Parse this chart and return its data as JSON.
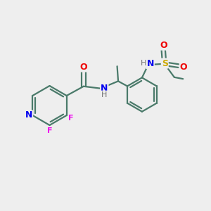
{
  "background_color": "#eeeeee",
  "bond_color": "#4a7a6a",
  "atom_colors": {
    "N": "#0000ee",
    "O": "#ee0000",
    "F": "#ee00ee",
    "S": "#ccaa00",
    "H": "#707070",
    "C": "#000000"
  },
  "figsize": [
    3.0,
    3.0
  ],
  "dpi": 100,
  "bond_lw": 1.6,
  "fontsize": 9
}
